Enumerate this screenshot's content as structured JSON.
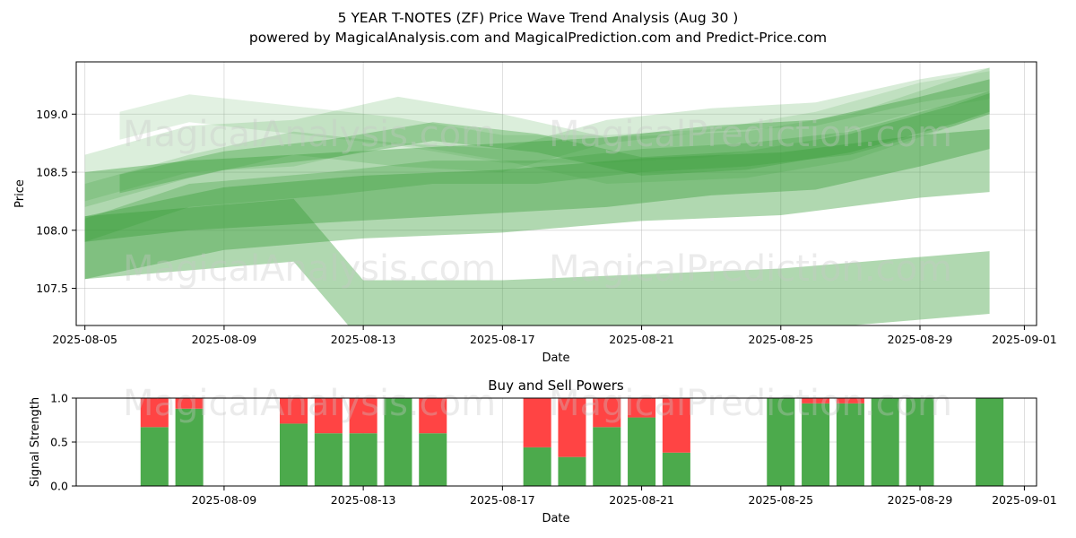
{
  "chart_data": [
    {
      "type": "area",
      "title": "5 YEAR T-NOTES (ZF) Price Wave Trend Analysis (Aug 30 )",
      "subtitle": "powered by MagicalAnalysis.com and MagicalPrediction.com and Predict-Price.com",
      "xlabel": "Date",
      "ylabel": "Price",
      "x_ticks": [
        "2025-08-05",
        "2025-08-09",
        "2025-08-13",
        "2025-08-17",
        "2025-08-21",
        "2025-08-25",
        "2025-08-29",
        "2025-09-01"
      ],
      "y_ticks": [
        "107.5",
        "108.0",
        "108.5",
        "109.0"
      ],
      "ylim": [
        107.18,
        109.45
      ],
      "grid": true,
      "band_color": "#3a9e3a",
      "bands": [
        {
          "x": [
            "2025-08-05",
            "2025-08-08",
            "2025-08-11",
            "2025-08-14",
            "2025-08-17",
            "2025-08-20",
            "2025-08-24",
            "2025-08-27",
            "2025-08-30",
            "2025-08-31"
          ],
          "y": [
            108.45,
            108.7,
            108.75,
            108.95,
            108.8,
            108.6,
            108.65,
            108.8,
            109.1,
            109.2
          ],
          "half_width": 0.2,
          "opacity": 0.18
        },
        {
          "x": [
            "2025-08-06",
            "2025-08-09",
            "2025-08-12",
            "2025-08-15",
            "2025-08-18",
            "2025-08-21",
            "2025-08-24",
            "2025-08-27",
            "2025-08-30",
            "2025-08-31"
          ],
          "y": [
            108.4,
            108.6,
            108.7,
            108.85,
            108.75,
            108.55,
            108.6,
            108.75,
            109.0,
            109.1
          ],
          "half_width": 0.08,
          "opacity": 0.35
        },
        {
          "x": [
            "2025-08-06",
            "2025-08-08",
            "2025-08-11",
            "2025-08-14",
            "2025-08-17",
            "2025-08-20",
            "2025-08-23",
            "2025-08-26",
            "2025-08-29",
            "2025-08-31"
          ],
          "y": [
            108.9,
            109.05,
            108.95,
            108.85,
            108.7,
            108.7,
            108.75,
            108.9,
            109.15,
            109.25
          ],
          "half_width": 0.12,
          "opacity": 0.15
        },
        {
          "x": [
            "2025-08-05",
            "2025-08-08",
            "2025-08-11",
            "2025-08-14",
            "2025-08-17",
            "2025-08-20",
            "2025-08-23",
            "2025-08-26",
            "2025-08-29",
            "2025-08-31"
          ],
          "y": [
            108.3,
            108.55,
            108.75,
            108.65,
            108.6,
            108.85,
            108.95,
            109.0,
            109.2,
            109.3
          ],
          "half_width": 0.1,
          "opacity": 0.2
        },
        {
          "x": [
            "2025-08-05",
            "2025-08-08",
            "2025-08-12",
            "2025-08-15",
            "2025-08-18",
            "2025-08-21",
            "2025-08-24",
            "2025-08-27",
            "2025-08-30",
            "2025-08-31"
          ],
          "y": [
            108.0,
            108.3,
            108.4,
            108.5,
            108.5,
            108.6,
            108.65,
            108.75,
            109.0,
            109.1
          ],
          "half_width": 0.1,
          "opacity": 0.3
        },
        {
          "x": [
            "2025-08-05",
            "2025-08-08",
            "2025-08-11",
            "2025-08-14",
            "2025-08-17",
            "2025-08-20",
            "2025-08-23",
            "2025-08-26",
            "2025-08-29",
            "2025-08-31"
          ],
          "y": [
            108.2,
            108.3,
            108.35,
            108.4,
            108.45,
            108.5,
            108.6,
            108.65,
            108.85,
            109.0
          ],
          "half_width": 0.3,
          "opacity": 0.4
        },
        {
          "x": [
            "2025-08-05",
            "2025-08-09",
            "2025-08-13",
            "2025-08-17",
            "2025-08-21",
            "2025-08-25",
            "2025-08-29",
            "2025-08-31"
          ],
          "y": [
            107.85,
            108.1,
            108.2,
            108.25,
            108.35,
            108.4,
            108.55,
            108.6
          ],
          "half_width": 0.27,
          "opacity": 0.4
        },
        {
          "x": [
            "2025-08-05",
            "2025-08-09",
            "2025-08-11",
            "2025-08-13",
            "2025-08-17",
            "2025-08-21",
            "2025-08-25",
            "2025-08-29",
            "2025-08-31"
          ],
          "y": [
            107.85,
            107.95,
            108.0,
            107.3,
            107.3,
            107.35,
            107.4,
            107.5,
            107.55
          ],
          "half_width": 0.27,
          "opacity": 0.4
        }
      ]
    },
    {
      "type": "bar",
      "title": "Buy and Sell Powers",
      "xlabel": "Date",
      "ylabel": "Signal Strength",
      "x_ticks": [
        "2025-08-09",
        "2025-08-13",
        "2025-08-17",
        "2025-08-21",
        "2025-08-25",
        "2025-08-29",
        "2025-09-01"
      ],
      "y_ticks": [
        "0.0",
        "0.5",
        "1.0"
      ],
      "ylim": [
        0,
        1
      ],
      "buy_color": "#4caa4c",
      "sell_color": "#ff4444",
      "dates": [
        "2025-08-07",
        "2025-08-08",
        "2025-08-11",
        "2025-08-12",
        "2025-08-13",
        "2025-08-14",
        "2025-08-15",
        "2025-08-18",
        "2025-08-19",
        "2025-08-20",
        "2025-08-21",
        "2025-08-22",
        "2025-08-25",
        "2025-08-26",
        "2025-08-27",
        "2025-08-28",
        "2025-08-29",
        "2025-08-31"
      ],
      "buy": [
        0.67,
        0.88,
        0.71,
        0.6,
        0.6,
        1.0,
        0.6,
        0.44,
        0.33,
        0.67,
        0.78,
        0.38,
        1.0,
        0.94,
        0.94,
        1.0,
        1.0,
        1.0
      ],
      "sell": [
        0.33,
        0.12,
        0.29,
        0.4,
        0.4,
        0.0,
        0.4,
        0.56,
        0.67,
        0.33,
        0.22,
        0.62,
        0.0,
        0.06,
        0.06,
        0.0,
        0.0,
        0.0
      ]
    }
  ],
  "watermarks": [
    "MagicalAnalysis.com",
    "MagicalPrediction.com"
  ]
}
